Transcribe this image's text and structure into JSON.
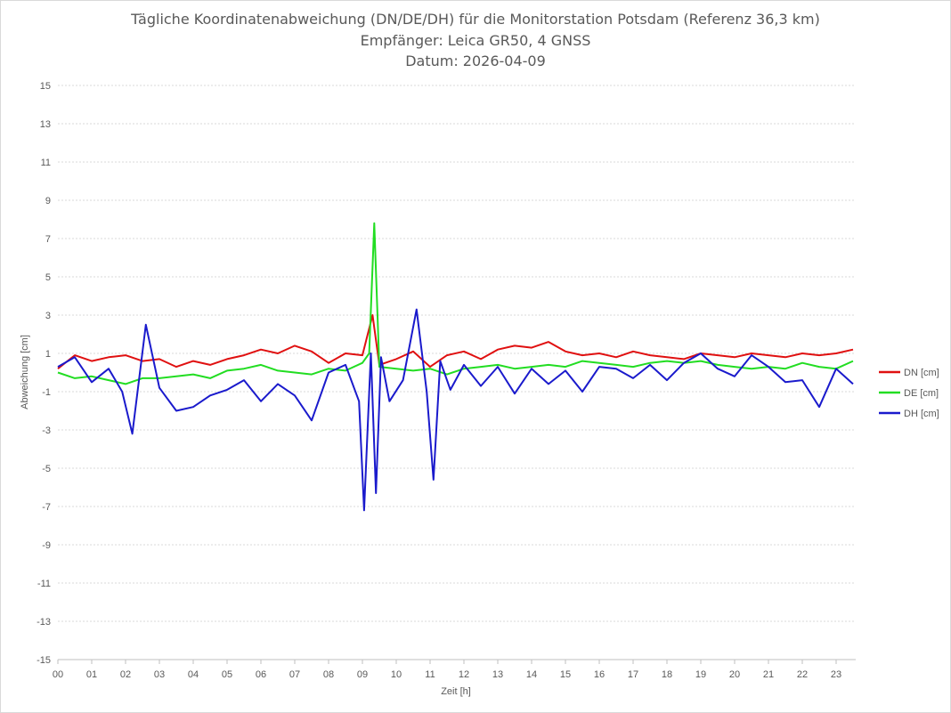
{
  "chart_data": {
    "type": "line",
    "title": "Tägliche Koordinatenabweichung (DN/DE/DH) für die Monitorstation Potsdam (Referenz 36,3 km)",
    "subtitle1": "Empfänger: Leica GR50, 4 GNSS",
    "subtitle2": "Datum: 2026-04-09",
    "xlabel": "Zeit [h]",
    "ylabel": "Abweichung [cm]",
    "ylim": [
      -15,
      15
    ],
    "yticks": [
      15,
      13,
      11,
      9,
      7,
      5,
      3,
      1,
      -1,
      -3,
      -5,
      -7,
      -9,
      -11,
      -13,
      -15
    ],
    "xlim": [
      0,
      23.5
    ],
    "xticks": [
      "00",
      "01",
      "02",
      "03",
      "04",
      "05",
      "06",
      "07",
      "08",
      "09",
      "10",
      "11",
      "12",
      "13",
      "14",
      "15",
      "16",
      "17",
      "18",
      "19",
      "20",
      "21",
      "22",
      "23"
    ],
    "grid": true,
    "legend_position": "right",
    "series": [
      {
        "name": "DN [cm]",
        "color": "#e01010",
        "x": [
          0,
          0.5,
          1,
          1.5,
          2,
          2.5,
          3,
          3.5,
          4,
          4.5,
          5,
          5.5,
          6,
          6.5,
          7,
          7.5,
          8,
          8.5,
          9,
          9.3,
          9.5,
          10,
          10.5,
          11,
          11.5,
          12,
          12.5,
          13,
          13.5,
          14,
          14.5,
          15,
          15.5,
          16,
          16.5,
          17,
          17.5,
          18,
          18.5,
          19,
          19.5,
          20,
          20.5,
          21,
          21.5,
          22,
          22.5,
          23,
          23.5
        ],
        "values": [
          0.2,
          0.9,
          0.6,
          0.8,
          0.9,
          0.6,
          0.7,
          0.3,
          0.6,
          0.4,
          0.7,
          0.9,
          1.2,
          1.0,
          1.4,
          1.1,
          0.5,
          1.0,
          0.9,
          3.0,
          0.4,
          0.7,
          1.1,
          0.3,
          0.9,
          1.1,
          0.7,
          1.2,
          1.4,
          1.3,
          1.6,
          1.1,
          0.9,
          1.0,
          0.8,
          1.1,
          0.9,
          0.8,
          0.7,
          1.0,
          0.9,
          0.8,
          1.0,
          0.9,
          0.8,
          1.0,
          0.9,
          1.0,
          1.2
        ]
      },
      {
        "name": "DE [cm]",
        "color": "#22dd22",
        "x": [
          0,
          0.5,
          1,
          1.5,
          2,
          2.5,
          3,
          3.5,
          4,
          4.5,
          5,
          5.5,
          6,
          6.5,
          7,
          7.5,
          8,
          8.5,
          9,
          9.2,
          9.35,
          9.5,
          10,
          10.5,
          11,
          11.5,
          12,
          12.5,
          13,
          13.5,
          14,
          14.5,
          15,
          15.5,
          16,
          16.5,
          17,
          17.5,
          18,
          18.5,
          19,
          19.5,
          20,
          20.5,
          21,
          21.5,
          22,
          22.5,
          23,
          23.5
        ],
        "values": [
          0.0,
          -0.3,
          -0.2,
          -0.4,
          -0.6,
          -0.3,
          -0.3,
          -0.2,
          -0.1,
          -0.3,
          0.1,
          0.2,
          0.4,
          0.1,
          0.0,
          -0.1,
          0.2,
          0.1,
          0.5,
          1.0,
          7.8,
          0.3,
          0.2,
          0.1,
          0.2,
          -0.1,
          0.2,
          0.3,
          0.4,
          0.2,
          0.3,
          0.4,
          0.3,
          0.6,
          0.5,
          0.4,
          0.3,
          0.5,
          0.6,
          0.5,
          0.6,
          0.4,
          0.3,
          0.2,
          0.3,
          0.2,
          0.5,
          0.3,
          0.2,
          0.6
        ]
      },
      {
        "name": "DH [cm]",
        "color": "#1a1acc",
        "x": [
          0,
          0.5,
          1,
          1.5,
          1.9,
          2.2,
          2.6,
          3,
          3.5,
          4,
          4.5,
          5,
          5.5,
          6,
          6.5,
          7,
          7.5,
          8,
          8.5,
          8.9,
          9.05,
          9.25,
          9.4,
          9.55,
          9.8,
          10.2,
          10.6,
          10.9,
          11.1,
          11.3,
          11.6,
          12,
          12.5,
          13,
          13.5,
          14,
          14.5,
          15,
          15.5,
          16,
          16.5,
          17,
          17.5,
          18,
          18.5,
          19,
          19.5,
          20,
          20.5,
          21,
          21.5,
          22,
          22.5,
          23,
          23.5
        ],
        "values": [
          0.3,
          0.8,
          -0.5,
          0.2,
          -1.0,
          -3.2,
          2.5,
          -0.8,
          -2.0,
          -1.8,
          -1.2,
          -0.9,
          -0.4,
          -1.5,
          -0.6,
          -1.2,
          -2.5,
          0.0,
          0.4,
          -1.5,
          -7.2,
          1.0,
          -6.3,
          0.8,
          -1.5,
          -0.4,
          3.3,
          -1.0,
          -5.6,
          0.6,
          -0.9,
          0.4,
          -0.7,
          0.3,
          -1.1,
          0.2,
          -0.6,
          0.1,
          -1.0,
          0.3,
          0.2,
          -0.3,
          0.4,
          -0.4,
          0.5,
          1.0,
          0.2,
          -0.2,
          0.9,
          0.3,
          -0.5,
          -0.4,
          -1.8,
          0.2,
          -0.6
        ]
      }
    ]
  }
}
